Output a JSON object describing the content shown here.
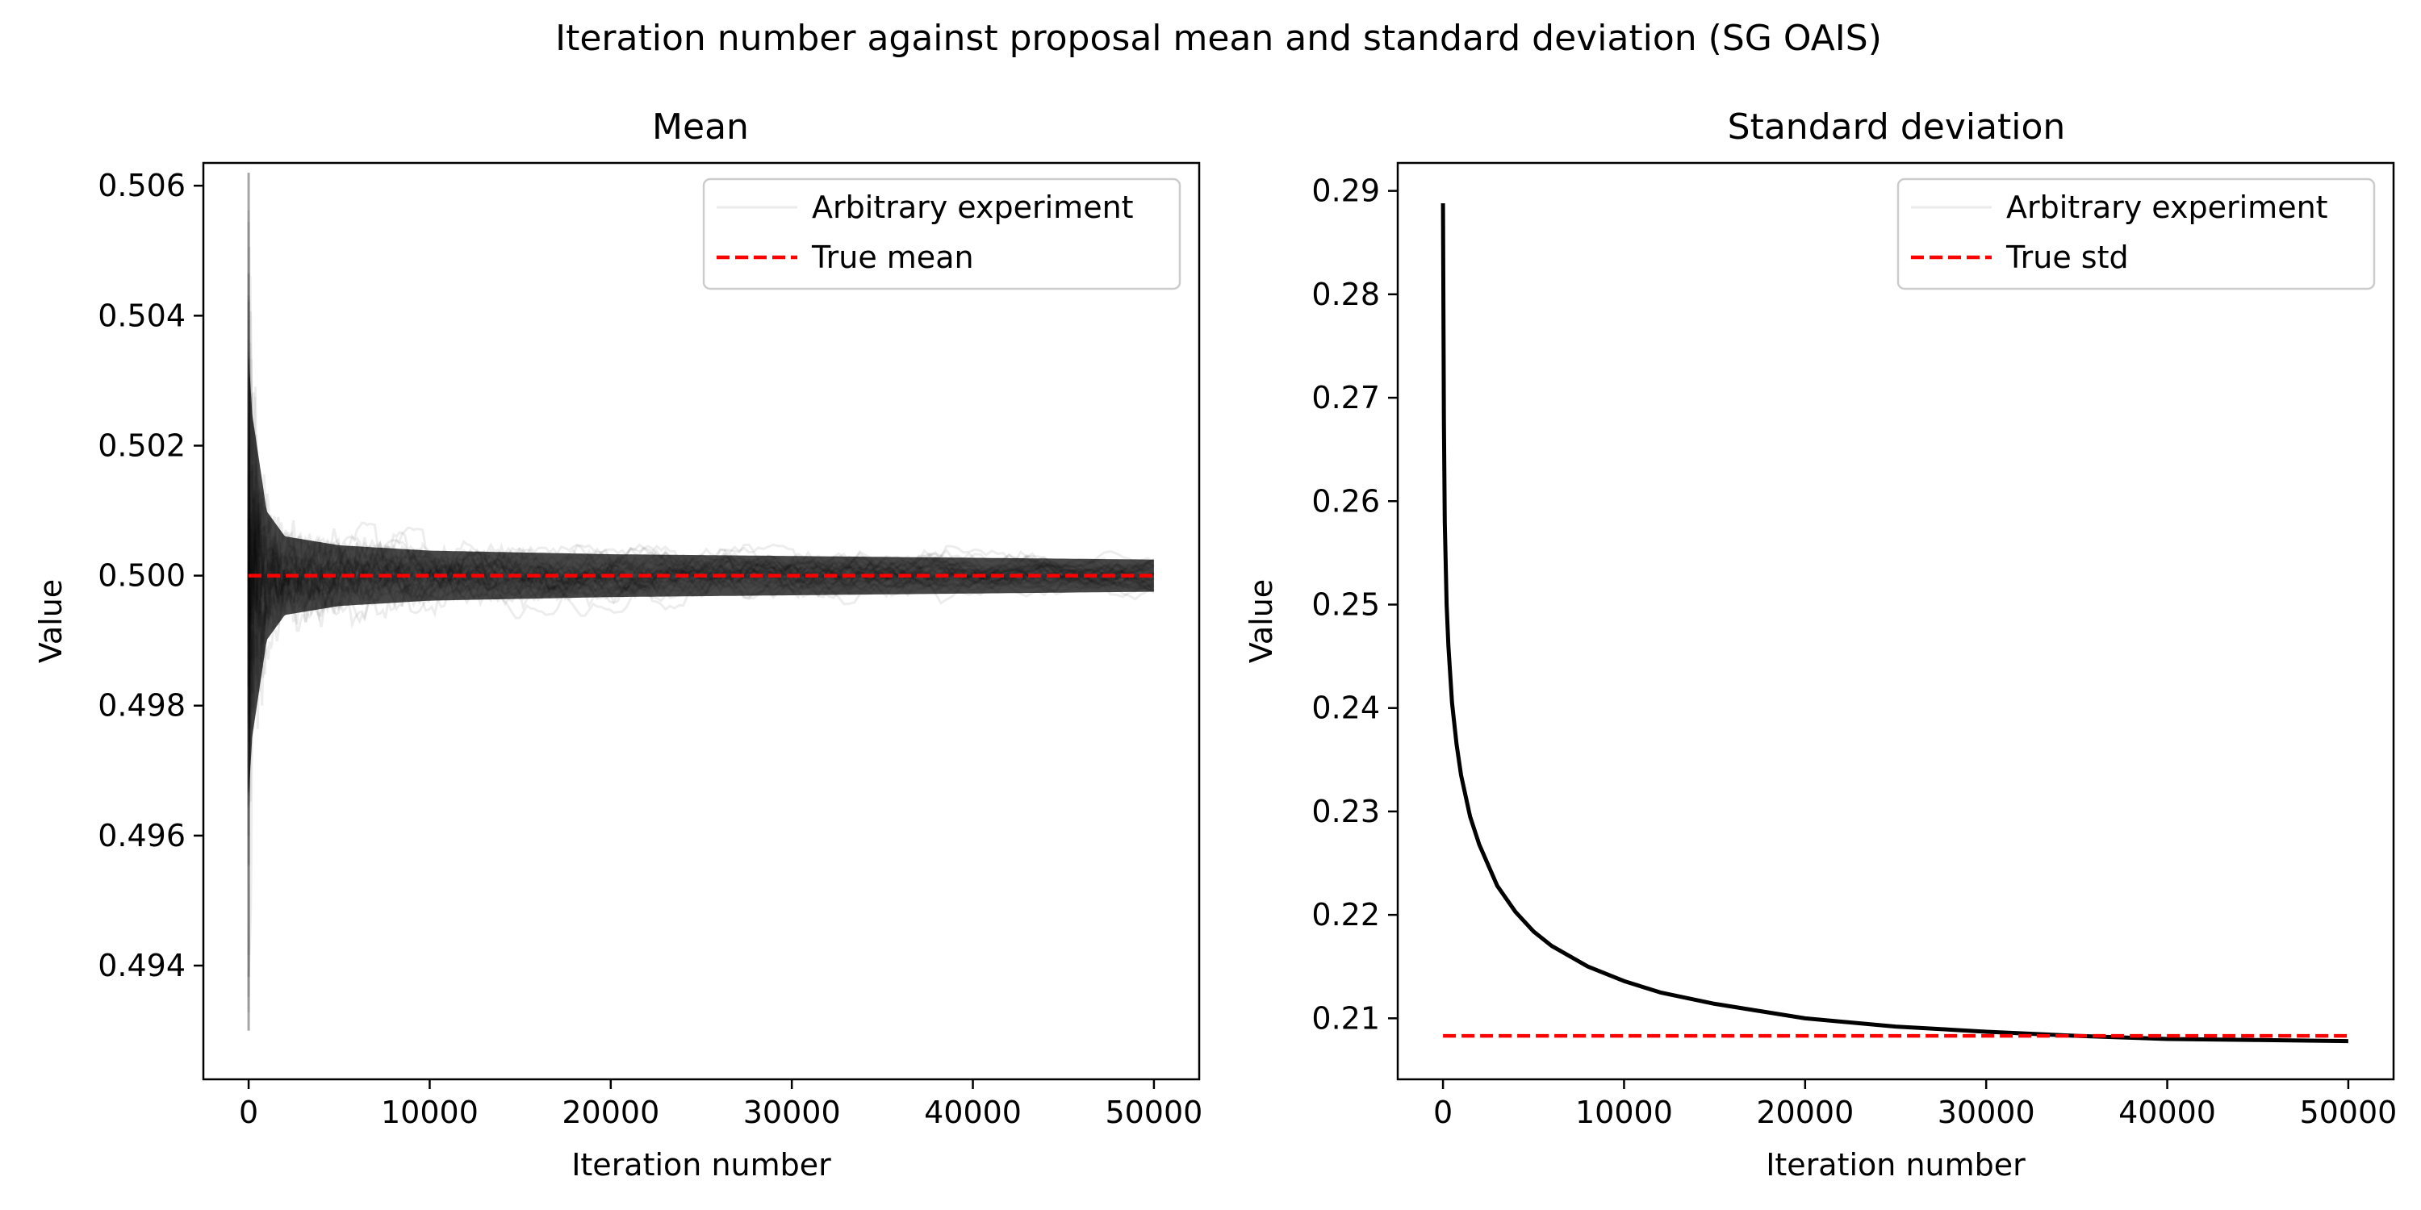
{
  "suptitle": "Iteration number against proposal mean and standard deviation (SG OAIS)",
  "chart_data": [
    {
      "type": "line",
      "title": "Mean",
      "xlabel": "Iteration number",
      "ylabel": "Value",
      "xlim": [
        -2500,
        52500
      ],
      "ylim": [
        0.49225,
        0.50635
      ],
      "xticks": [
        0,
        10000,
        20000,
        30000,
        40000,
        50000
      ],
      "xtick_labels": [
        "0",
        "10000",
        "20000",
        "30000",
        "40000",
        "50000"
      ],
      "yticks": [
        0.494,
        0.496,
        0.498,
        0.5,
        0.502,
        0.504,
        0.506
      ],
      "ytick_labels": [
        "0.494",
        "0.496",
        "0.498",
        "0.500",
        "0.502",
        "0.504",
        "0.506"
      ],
      "grid": false,
      "legend": {
        "placement": "top-right",
        "entries": [
          {
            "label": "Arbitrary experiment",
            "color": "#000000",
            "style": "solid-faint"
          },
          {
            "label": "True mean",
            "color": "#ff0000",
            "style": "dashed"
          }
        ]
      },
      "series": [
        {
          "name": "Arbitrary experiment",
          "color": "#000000",
          "opacity": 0.07,
          "x_range": [
            0,
            50000
          ],
          "initial_range": [
            0.493,
            0.5062
          ],
          "center": 0.5,
          "envelope": {
            "x": [
              0,
              200,
              1000,
              2000,
              5000,
              10000,
              20000,
              30000,
              40000,
              50000
            ],
            "halfwidth": [
              0.0062,
              0.0045,
              0.0018,
              0.0011,
              0.00085,
              0.0007,
              0.0006,
              0.00055,
              0.0005,
              0.00045
            ]
          },
          "runs": 40
        },
        {
          "name": "True mean",
          "color": "#ff0000",
          "style": "dashed",
          "x": [
            0,
            50000
          ],
          "y": [
            0.5,
            0.5
          ]
        }
      ]
    },
    {
      "type": "line",
      "title": "Standard deviation",
      "xlabel": "Iteration number",
      "ylabel": "Value",
      "xlim": [
        -2500,
        52500
      ],
      "ylim": [
        0.2041,
        0.2927
      ],
      "xticks": [
        0,
        10000,
        20000,
        30000,
        40000,
        50000
      ],
      "xtick_labels": [
        "0",
        "10000",
        "20000",
        "30000",
        "40000",
        "50000"
      ],
      "yticks": [
        0.21,
        0.22,
        0.23,
        0.24,
        0.25,
        0.26,
        0.27,
        0.28,
        0.29
      ],
      "ytick_labels": [
        "0.21",
        "0.22",
        "0.23",
        "0.24",
        "0.25",
        "0.26",
        "0.27",
        "0.28",
        "0.29"
      ],
      "grid": false,
      "legend": {
        "placement": "top-right",
        "entries": [
          {
            "label": "Arbitrary experiment",
            "color": "#000000",
            "style": "solid-faint"
          },
          {
            "label": "True std",
            "color": "#ff0000",
            "style": "dashed"
          }
        ]
      },
      "series": [
        {
          "name": "Arbitrary experiment",
          "color": "#000000",
          "x": [
            0,
            50,
            100,
            200,
            300,
            500,
            750,
            1000,
            1500,
            2000,
            3000,
            4000,
            5000,
            6000,
            8000,
            10000,
            12000,
            15000,
            20000,
            25000,
            30000,
            35000,
            40000,
            45000,
            50000
          ],
          "y": [
            0.2888,
            0.268,
            0.258,
            0.25,
            0.246,
            0.2405,
            0.2365,
            0.2335,
            0.2295,
            0.2268,
            0.2228,
            0.2203,
            0.2184,
            0.217,
            0.215,
            0.2136,
            0.2125,
            0.2114,
            0.21,
            0.2092,
            0.2087,
            0.2083,
            0.208,
            0.2079,
            0.2078
          ]
        },
        {
          "name": "True std",
          "color": "#ff0000",
          "style": "dashed",
          "x": [
            0,
            50000
          ],
          "y": [
            0.2083,
            0.2083
          ]
        }
      ]
    }
  ]
}
